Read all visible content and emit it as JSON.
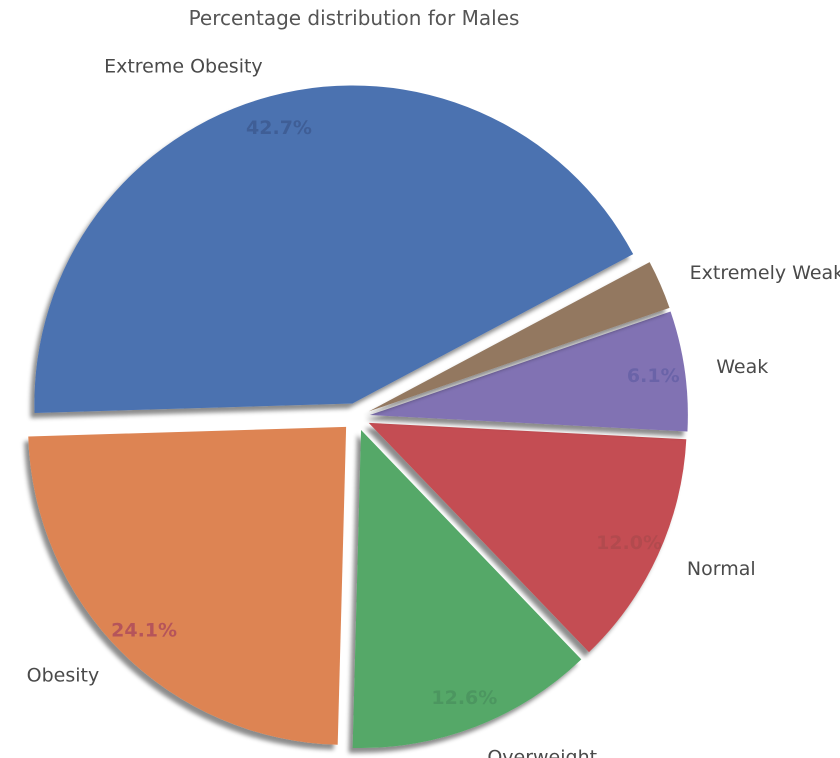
{
  "chart_data": {
    "type": "pie",
    "title": "Percentage distribution for Males",
    "slices": [
      {
        "label": "Extreme Obesity",
        "value": 42.7,
        "pct_text": "42.7%",
        "color": "#4c72b0",
        "pct_color": "#3f5e96"
      },
      {
        "label": "Obesity",
        "value": 24.1,
        "pct_text": "24.1%",
        "color": "#dd8452",
        "pct_color": "#b5545a"
      },
      {
        "label": "Overweight",
        "value": 12.6,
        "pct_text": "12.6%",
        "color": "#55a868",
        "pct_color": "#4c9660"
      },
      {
        "label": "Normal",
        "value": 12.0,
        "pct_text": "12.0%",
        "color": "#c44e52",
        "pct_color": "#b24a4e"
      },
      {
        "label": "Weak",
        "value": 6.1,
        "pct_text": "6.1%",
        "color": "#8172b3",
        "pct_color": "#6a63a8"
      },
      {
        "label": "Extremely Weak",
        "value": 2.5,
        "pct_text": "",
        "color": "#937860",
        "pct_color": "#7e6752"
      }
    ]
  }
}
